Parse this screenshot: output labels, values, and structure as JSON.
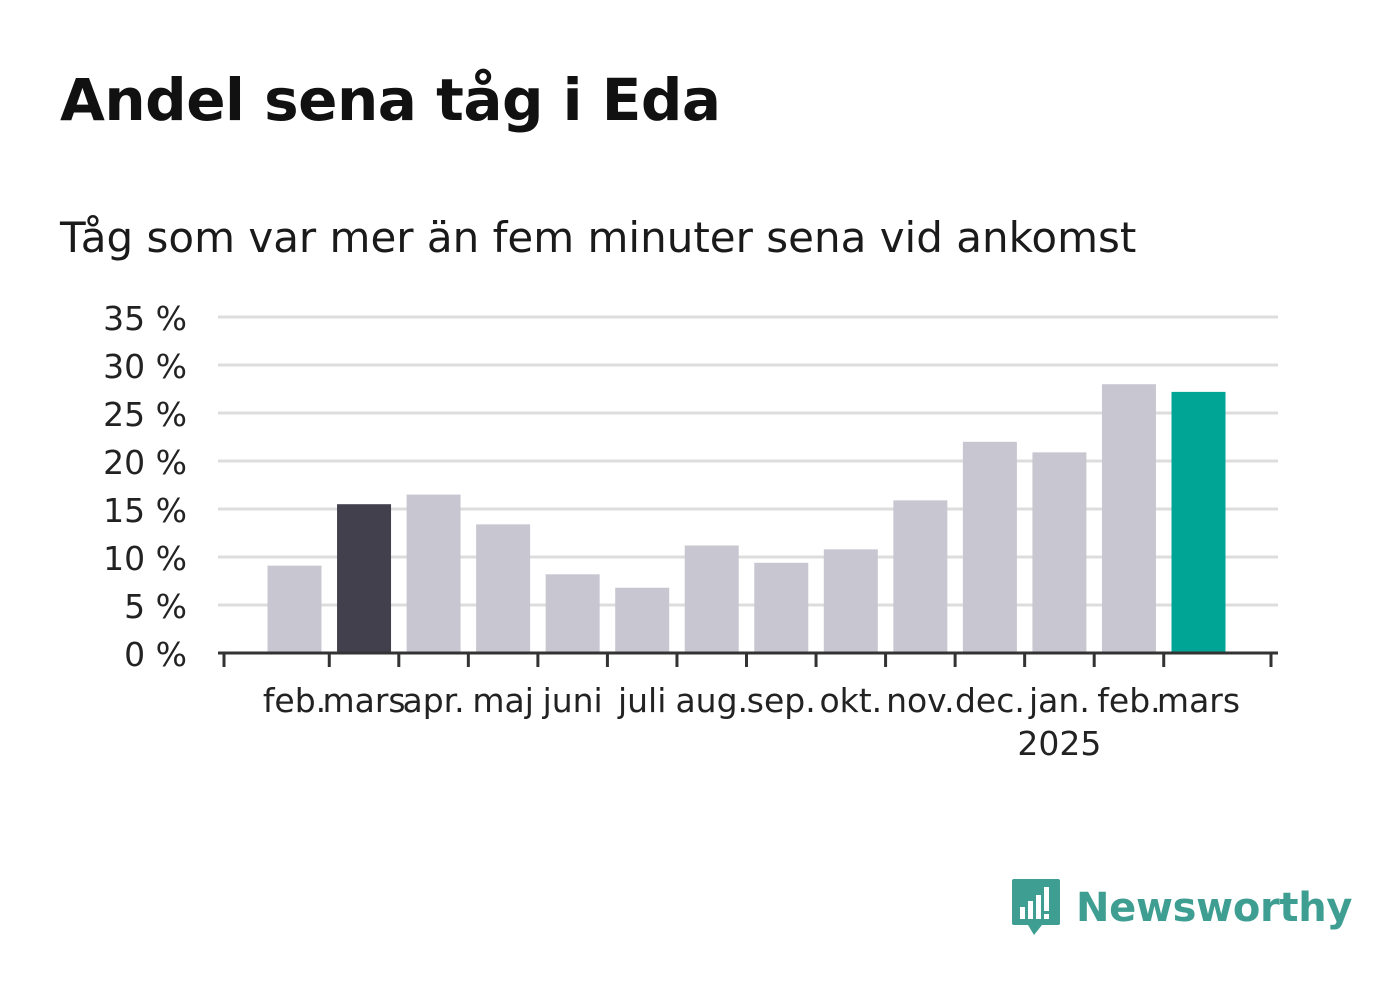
{
  "title": "Andel sena tåg i Eda",
  "subtitle": "Tåg som var mer än fem minuter sena vid ankomst",
  "brand": {
    "name": "Newsworthy",
    "icon": "newsworthy-logo-icon"
  },
  "colors": {
    "default_bar": "#c8c7d1",
    "highlight_previous": "#42404c",
    "highlight_current": "#00a596",
    "grid": "#dddddd",
    "axis": "#333333",
    "brand": "#3f9e92"
  },
  "chart_data": {
    "type": "bar",
    "title": "Andel sena tåg i Eda",
    "subtitle": "Tåg som var mer än fem minuter sena vid ankomst",
    "categories": [
      "feb.",
      "mars",
      "apr.",
      "maj",
      "juni",
      "juli",
      "aug.",
      "sep.",
      "okt.",
      "nov.",
      "dec.",
      "jan.",
      "feb.",
      "mars"
    ],
    "year_labels": [
      {
        "category_index": 11,
        "label": "2025"
      }
    ],
    "values": [
      9.1,
      15.5,
      16.5,
      13.4,
      8.2,
      6.8,
      11.2,
      9.4,
      10.8,
      15.9,
      22.0,
      20.9,
      28.0,
      27.2
    ],
    "highlight": {
      "previous_index": 1,
      "current_index": 13
    },
    "ylim": [
      0,
      35
    ],
    "yticks": [
      0,
      5,
      10,
      15,
      20,
      25,
      30,
      35
    ],
    "ytick_labels": [
      "0 %",
      "5 %",
      "10 %",
      "15 %",
      "20 %",
      "25 %",
      "30 %",
      "35 %"
    ],
    "xlabel": "",
    "ylabel": "",
    "grid": true
  }
}
